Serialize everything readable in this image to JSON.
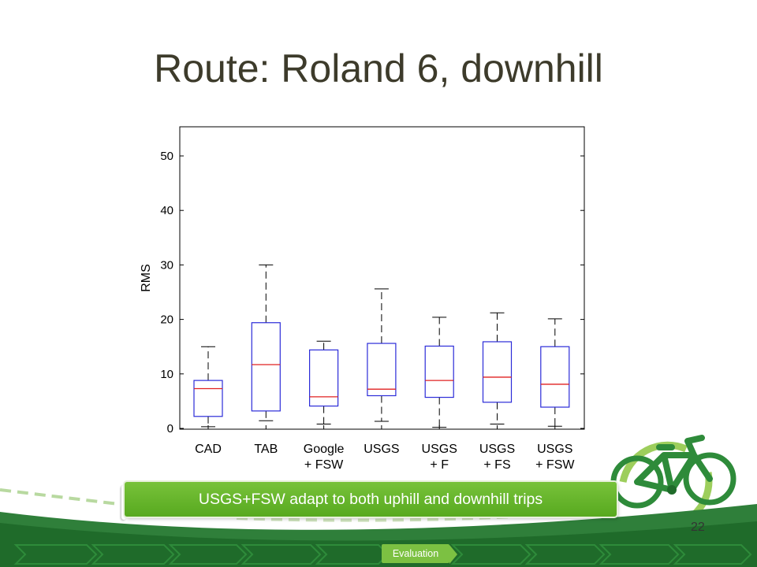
{
  "slide": {
    "title": "Route: Roland 6, downhill",
    "banner_text": "USGS+FSW adapt to both uphill and downhill trips",
    "page_number": "22",
    "nav_label": "Evaluation",
    "colors": {
      "title": "#3d3b2b",
      "banner": "#6ab82f",
      "footer": "#1f6b2a",
      "nav_active": "#7cc142"
    }
  },
  "chart_data": {
    "type": "boxplot",
    "title": "",
    "xlabel": "",
    "ylabel": "RMS",
    "ylim": [
      0,
      55
    ],
    "yticks": [
      "0",
      "10",
      "20",
      "30",
      "40",
      "50"
    ],
    "categories": [
      [
        "CAD"
      ],
      [
        "TAB"
      ],
      [
        "Google",
        "+ FSW"
      ],
      [
        "USGS"
      ],
      [
        "USGS",
        "+ F"
      ],
      [
        "USGS",
        "+ FS"
      ],
      [
        "USGS",
        "+ FSW"
      ]
    ],
    "boxes": [
      {
        "whisker_low": 0.3,
        "q1": 2.2,
        "median": 7.3,
        "q3": 8.8,
        "whisker_high": 15.0
      },
      {
        "whisker_low": 1.4,
        "q1": 3.2,
        "median": 11.7,
        "q3": 19.4,
        "whisker_high": 30.0
      },
      {
        "whisker_low": 0.8,
        "q1": 4.1,
        "median": 5.8,
        "q3": 14.4,
        "whisker_high": 16.0
      },
      {
        "whisker_low": 1.3,
        "q1": 6.0,
        "median": 7.2,
        "q3": 15.6,
        "whisker_high": 25.6
      },
      {
        "whisker_low": 0.2,
        "q1": 5.7,
        "median": 8.8,
        "q3": 15.1,
        "whisker_high": 20.4
      },
      {
        "whisker_low": 0.8,
        "q1": 4.8,
        "median": 9.4,
        "q3": 15.9,
        "whisker_high": 21.2
      },
      {
        "whisker_low": 0.4,
        "q1": 3.9,
        "median": 8.1,
        "q3": 15.0,
        "whisker_high": 20.1
      }
    ],
    "colors": {
      "box": "#2b2bd8",
      "median": "#e02020",
      "whisker": "#000000"
    },
    "grid": false
  }
}
